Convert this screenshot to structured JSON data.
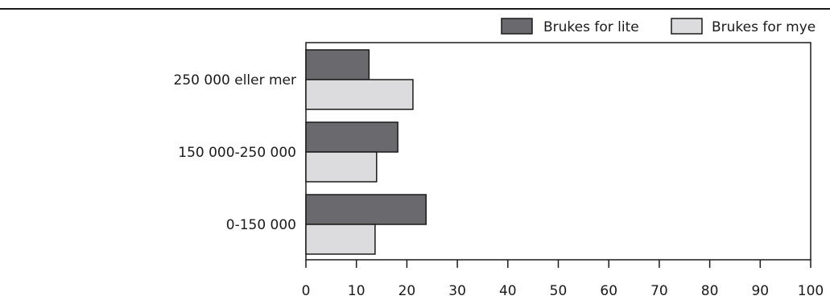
{
  "chart_data": {
    "type": "bar",
    "orientation": "horizontal",
    "categories": [
      "250 000 eller mer",
      "150 000-250 000",
      "0-150 000"
    ],
    "series": [
      {
        "name": "Brukes for lite",
        "values": [
          12.5,
          18.2,
          23.8
        ],
        "color": "#6a6a6e"
      },
      {
        "name": "Brukes for mye",
        "values": [
          21.2,
          14.0,
          13.7
        ],
        "color": "#dcdcde"
      }
    ],
    "xlim": [
      0,
      100
    ],
    "xticks": [
      "0",
      "10",
      "20",
      "30",
      "40",
      "50",
      "60",
      "70",
      "80",
      "90",
      "100"
    ],
    "title": "",
    "xlabel": "",
    "ylabel": "",
    "grid": false,
    "legend_position": "top-right"
  }
}
